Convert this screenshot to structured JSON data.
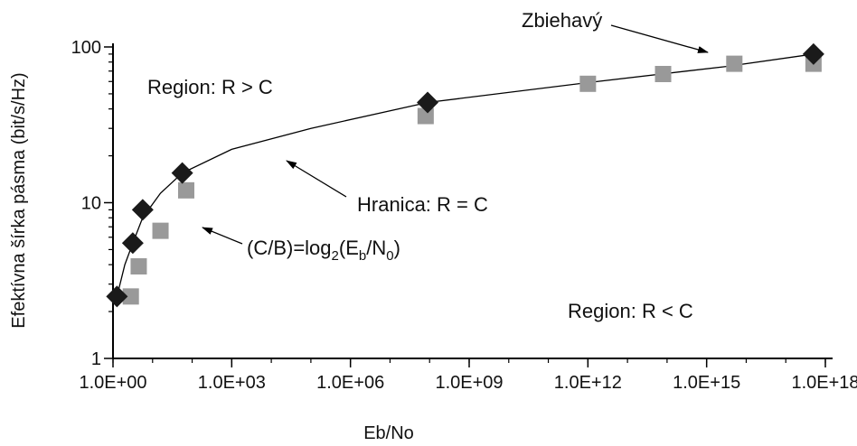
{
  "chart_data": {
    "type": "scatter",
    "xscale": "log",
    "yscale": "log",
    "xlim_exp": [
      0,
      18
    ],
    "ylim": [
      1,
      100
    ],
    "xlabel": "Eb/No",
    "ylabel": "Efektívna šírka pásma (bit/s/Hz)",
    "x_ticks": [
      "1.0E+00",
      "1.0E+03",
      "1.0E+06",
      "1.0E+09",
      "1.0E+12",
      "1.0E+15",
      "1.0E+18"
    ],
    "y_ticks": [
      "1",
      "10",
      "100"
    ],
    "grid": false,
    "series": [
      {
        "marker": "diamond",
        "color": "#1a1a1a",
        "points": [
          {
            "x_exp": 0.1,
            "y": 2.5
          },
          {
            "x_exp": 0.5,
            "y": 5.5
          },
          {
            "x_exp": 0.75,
            "y": 9.0
          },
          {
            "x_exp": 1.75,
            "y": 15.5
          },
          {
            "x_exp": 7.95,
            "y": 44
          },
          {
            "x_exp": 17.7,
            "y": 90
          }
        ]
      },
      {
        "marker": "square",
        "color": "#999999",
        "points": [
          {
            "x_exp": 0.45,
            "y": 2.5
          },
          {
            "x_exp": 0.65,
            "y": 3.9
          },
          {
            "x_exp": 1.2,
            "y": 6.6
          },
          {
            "x_exp": 1.85,
            "y": 12.0
          },
          {
            "x_exp": 7.9,
            "y": 36
          },
          {
            "x_exp": 12.0,
            "y": 58
          },
          {
            "x_exp": 13.9,
            "y": 67
          },
          {
            "x_exp": 15.7,
            "y": 78
          },
          {
            "x_exp": 17.7,
            "y": 78
          }
        ]
      },
      {
        "type": "line",
        "color": "#000000",
        "points": [
          {
            "x_exp": 0.1,
            "y": 2.5
          },
          {
            "x_exp": 0.3,
            "y": 4.0
          },
          {
            "x_exp": 0.5,
            "y": 5.5
          },
          {
            "x_exp": 0.75,
            "y": 8.0
          },
          {
            "x_exp": 1.2,
            "y": 11.5
          },
          {
            "x_exp": 1.75,
            "y": 15.5
          },
          {
            "x_exp": 3,
            "y": 22
          },
          {
            "x_exp": 5,
            "y": 30
          },
          {
            "x_exp": 7.95,
            "y": 44
          },
          {
            "x_exp": 12,
            "y": 59
          },
          {
            "x_exp": 15.5,
            "y": 75
          },
          {
            "x_exp": 17.7,
            "y": 90
          }
        ]
      }
    ],
    "annotations": {
      "region_above": "Region: R > C",
      "region_below": "Region: R < C",
      "boundary": "Hranica: R = C",
      "convergent": "Zbiehavý",
      "formula": {
        "p1": "(C/B)=log",
        "s1": "2",
        "p2": "(E",
        "s2": "b",
        "p3": "/N",
        "s3": "0",
        "p4": ")"
      }
    }
  }
}
